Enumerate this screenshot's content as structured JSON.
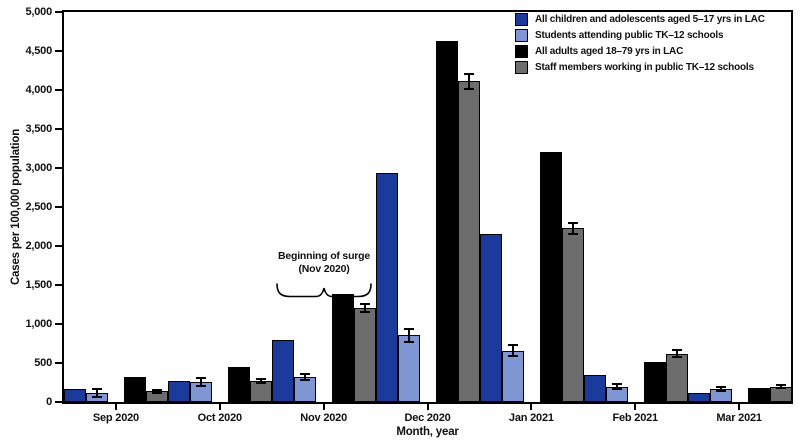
{
  "figure": {
    "ylabel": "Cases per 100,000 population",
    "xlabel": "Month, year",
    "annotation_line1": "Beginning of surge",
    "annotation_line2": "(Nov 2020)"
  },
  "chart_data": {
    "type": "bar",
    "title": "",
    "xlabel": "Month, year",
    "ylabel": "Cases per 100,000 population",
    "ylim": [
      0,
      5000
    ],
    "ytick_step": 500,
    "grid": false,
    "legend_position": "inside top-right",
    "categories": [
      "Sep 2020",
      "Oct 2020",
      "Nov 2020",
      "Dec 2020",
      "Jan 2021",
      "Feb 2021",
      "Mar 2021"
    ],
    "series": [
      {
        "name": "All children and adolescents aged 5–17 yrs in LAC",
        "color": "#1a3b9c",
        "values": [
          170,
          270,
          800,
          2930,
          2160,
          350,
          110
        ]
      },
      {
        "name": "Students attending public TK–12 schools",
        "color": "#7e96d3",
        "values": [
          115,
          255,
          320,
          855,
          655,
          195,
          165
        ],
        "error_bars": [
          55,
          50,
          40,
          85,
          70,
          30,
          25
        ]
      },
      {
        "name": "All adults aged 18–79 yrs in LAC",
        "color": "#000000",
        "values": [
          320,
          450,
          1380,
          4630,
          3200,
          515,
          175
        ]
      },
      {
        "name": "Staff members working in public TK–12 schools",
        "color": "#6d6d6d",
        "values": [
          135,
          270,
          1210,
          4110,
          2230,
          620,
          195
        ],
        "error_bars": [
          15,
          25,
          50,
          95,
          70,
          45,
          20
        ]
      }
    ]
  }
}
